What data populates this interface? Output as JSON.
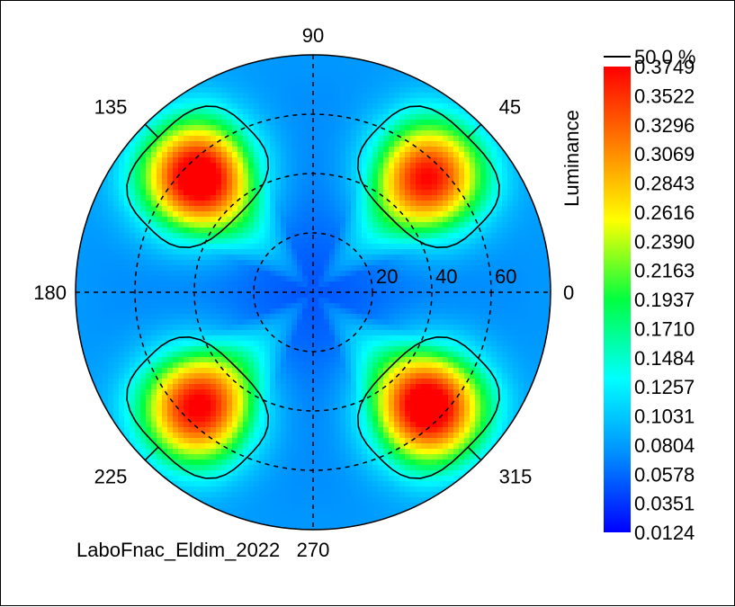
{
  "chart_data": {
    "type": "heatmap",
    "projection": "polar",
    "angle_labels": [
      "0",
      "45",
      "90",
      "135",
      "180",
      "225",
      "270",
      "315"
    ],
    "radial_labels": [
      "20",
      "40",
      "60"
    ],
    "radial_ticks": [
      20,
      40,
      60
    ],
    "r_max": 80,
    "colorbar": {
      "label": "Luminance",
      "min": 0.0124,
      "max": 0.3749,
      "ticks": [
        "0.3749",
        "0.3522",
        "0.3296",
        "0.3069",
        "0.2843",
        "0.2616",
        "0.2390",
        "0.2163",
        "0.1937",
        "0.1710",
        "0.1484",
        "0.1257",
        "0.1031",
        "0.0804",
        "0.0578",
        "0.0351",
        "0.0124"
      ]
    },
    "contour": {
      "label": "50.0 %",
      "level": 0.1937
    },
    "footer": "LaboFnac_Eldim_2022",
    "lobes": [
      {
        "azimuth_deg": 45,
        "theta_deg": 55,
        "peak": 0.32
      },
      {
        "azimuth_deg": 135,
        "theta_deg": 55,
        "peak": 0.36
      },
      {
        "azimuth_deg": 225,
        "theta_deg": 55,
        "peak": 0.33
      },
      {
        "azimuth_deg": 315,
        "theta_deg": 55,
        "peak": 0.36
      }
    ],
    "grid": true,
    "colormap": [
      "#0000ff",
      "#0090ff",
      "#00ffff",
      "#00ff40",
      "#ffff00",
      "#ff8000",
      "#ff0000"
    ]
  }
}
